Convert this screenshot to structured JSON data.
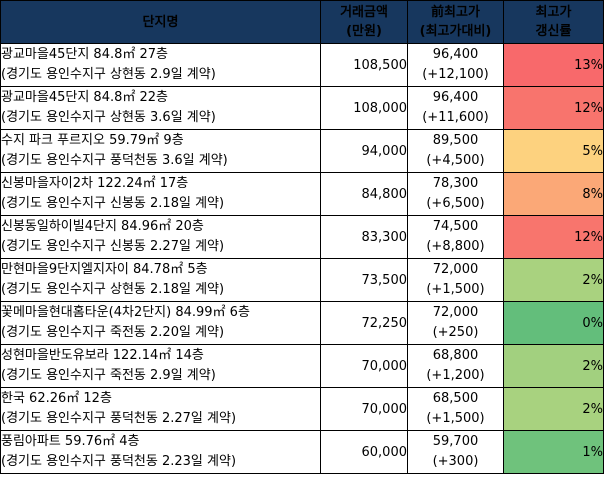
{
  "header": {
    "name": "단지명",
    "price_line1": "거래금액",
    "price_line2": "(만원)",
    "prev_line1": "前최고가",
    "prev_line2": "(최고가대비)",
    "rate_line1": "최고가",
    "rate_line2": "갱신률"
  },
  "rows": [
    {
      "name": "광교마을45단지 84.8㎡ 27층",
      "detail": "(경기도 용인수지구 상현동 2.9일 계약)",
      "price": "108,500",
      "prev": "96,400",
      "diff": "(+12,100)",
      "rate": "13%",
      "color": "#f8696b"
    },
    {
      "name": "광교마을45단지 84.8㎡ 22층",
      "detail": "(경기도 용인수지구 상현동 3.6일 계약)",
      "price": "108,000",
      "prev": "96,400",
      "diff": "(+11,600)",
      "rate": "12%",
      "color": "#f8746d"
    },
    {
      "name": "수지 파크 푸르지오 59.79㎡ 9층",
      "detail": "(경기도 용인수지구 풍덕천동 3.6일 계약)",
      "price": "94,000",
      "prev": "89,500",
      "diff": "(+4,500)",
      "rate": "5%",
      "color": "#fdd27f"
    },
    {
      "name": "신봉마을자이2차 122.24㎡ 17층",
      "detail": "(경기도 용인수지구 신봉동 2.18일 계약)",
      "price": "84,800",
      "prev": "78,300",
      "diff": "(+6,500)",
      "rate": "8%",
      "color": "#fba877"
    },
    {
      "name": "신봉동일하이빌4단지 84.96㎡ 20층",
      "detail": "(경기도 용인수지구 신봉동 2.27일 계약)",
      "price": "83,300",
      "prev": "74,500",
      "diff": "(+8,800)",
      "rate": "12%",
      "color": "#f8756d"
    },
    {
      "name": "만현마을9단지엘지자이 84.78㎡ 5층",
      "detail": "(경기도 용인수지구 상현동 2.18일 계약)",
      "price": "73,500",
      "prev": "72,000",
      "diff": "(+1,500)",
      "rate": "2%",
      "color": "#a9d27f"
    },
    {
      "name": "꽃메마을현대홈타운(4차2단지) 84.99㎡ 6층",
      "detail": "(경기도 용인수지구 죽전동 2.20일 계약)",
      "price": "72,250",
      "prev": "72,000",
      "diff": "(+250)",
      "rate": "0%",
      "color": "#63be7b"
    },
    {
      "name": "성현마을반도유보라 122.14㎡ 14층",
      "detail": "(경기도 용인수지구 죽전동 2.9일 계약)",
      "price": "70,000",
      "prev": "68,800",
      "diff": "(+1,200)",
      "rate": "2%",
      "color": "#a2d07f"
    },
    {
      "name": "한국 62.26㎡ 12층",
      "detail": "(경기도 용인수지구 풍덕천동 2.27일 계약)",
      "price": "70,000",
      "prev": "68,500",
      "diff": "(+1,500)",
      "rate": "2%",
      "color": "#a8d27f"
    },
    {
      "name": "풍림아파트 59.76㎡ 4층",
      "detail": "(경기도 용인수지구 풍덕천동 2.23일 계약)",
      "price": "60,000",
      "prev": "59,700",
      "diff": "(+300)",
      "rate": "1%",
      "color": "#6fc27c"
    }
  ]
}
